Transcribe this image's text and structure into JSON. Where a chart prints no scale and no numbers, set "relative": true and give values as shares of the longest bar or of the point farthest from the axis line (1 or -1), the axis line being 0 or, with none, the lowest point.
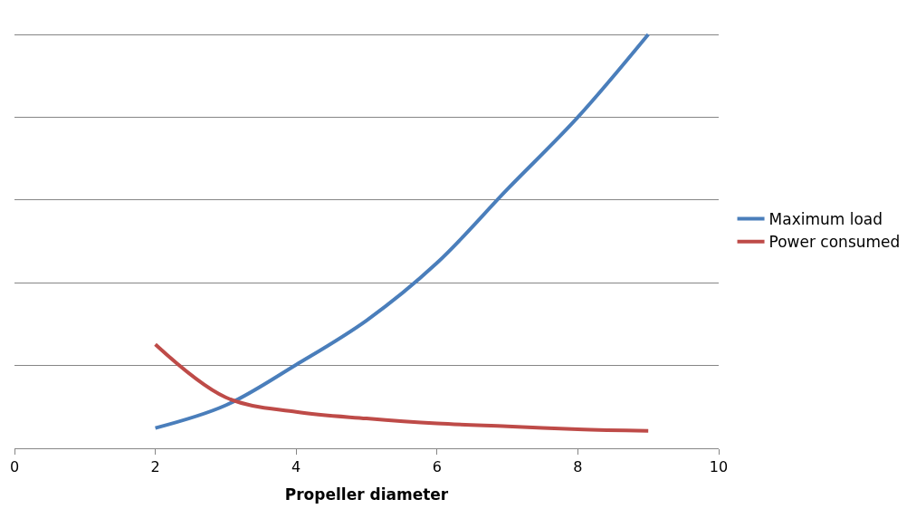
{
  "chart_data": {
    "type": "line",
    "relative": true,
    "xlabel": "Propeller diameter",
    "xlim": [
      0,
      10
    ],
    "xticks": [
      0,
      2,
      4,
      6,
      8,
      10
    ],
    "grid": "y",
    "legend": "right",
    "marker": "none",
    "line_style": "solid",
    "series": [
      {
        "name": "Maximum load",
        "color": "#4a7ebb",
        "x": [
          2,
          3,
          4,
          5,
          6,
          7,
          8,
          9
        ],
        "values": [
          0.049,
          0.104,
          0.202,
          0.309,
          0.448,
          0.626,
          0.8,
          1
        ]
      },
      {
        "name": "Power consumed",
        "color": "#be4b48",
        "x": [
          2,
          3,
          4,
          5,
          6,
          7,
          8,
          9
        ],
        "values": [
          0.251,
          0.123,
          0.088,
          0.072,
          0.06,
          0.053,
          0.046,
          0.042
        ]
      }
    ]
  }
}
